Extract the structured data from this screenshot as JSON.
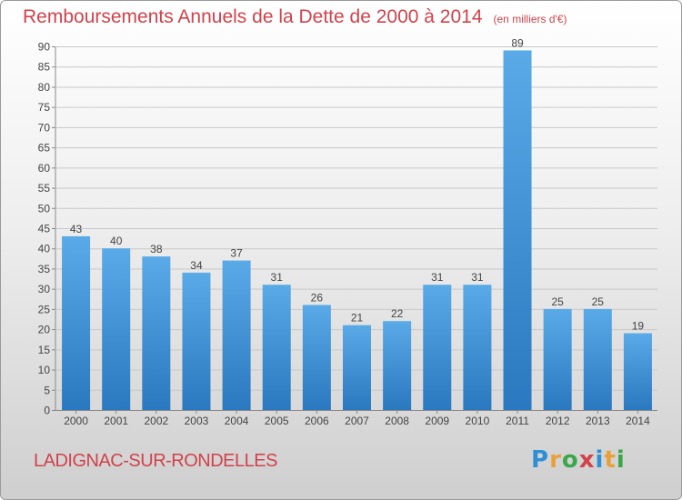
{
  "title": "Remboursements Annuels de la Dette de 2000 à 2014",
  "subtitle": "(en milliers d'€)",
  "location": "LADIGNAC-SUR-RONDELLES",
  "logo": "Proxiti",
  "colors": {
    "title": "#d2424b",
    "bar_light": "#5aaae8",
    "bar_dark": "#2a78bf"
  },
  "chart_data": {
    "type": "bar",
    "title": "Remboursements Annuels de la Dette de 2000 à 2014",
    "xlabel": "",
    "ylabel": "",
    "categories": [
      "2000",
      "2001",
      "2002",
      "2003",
      "2004",
      "2005",
      "2006",
      "2007",
      "2008",
      "2009",
      "2010",
      "2011",
      "2012",
      "2013",
      "2014"
    ],
    "values": [
      43,
      40,
      38,
      34,
      37,
      31,
      26,
      21,
      22,
      31,
      31,
      89,
      25,
      25,
      19
    ],
    "ylim": [
      0,
      90
    ],
    "yticks": [
      0,
      5,
      10,
      15,
      20,
      25,
      30,
      35,
      40,
      45,
      50,
      55,
      60,
      65,
      70,
      75,
      80,
      85,
      90
    ],
    "grid": true,
    "legend": "none"
  }
}
